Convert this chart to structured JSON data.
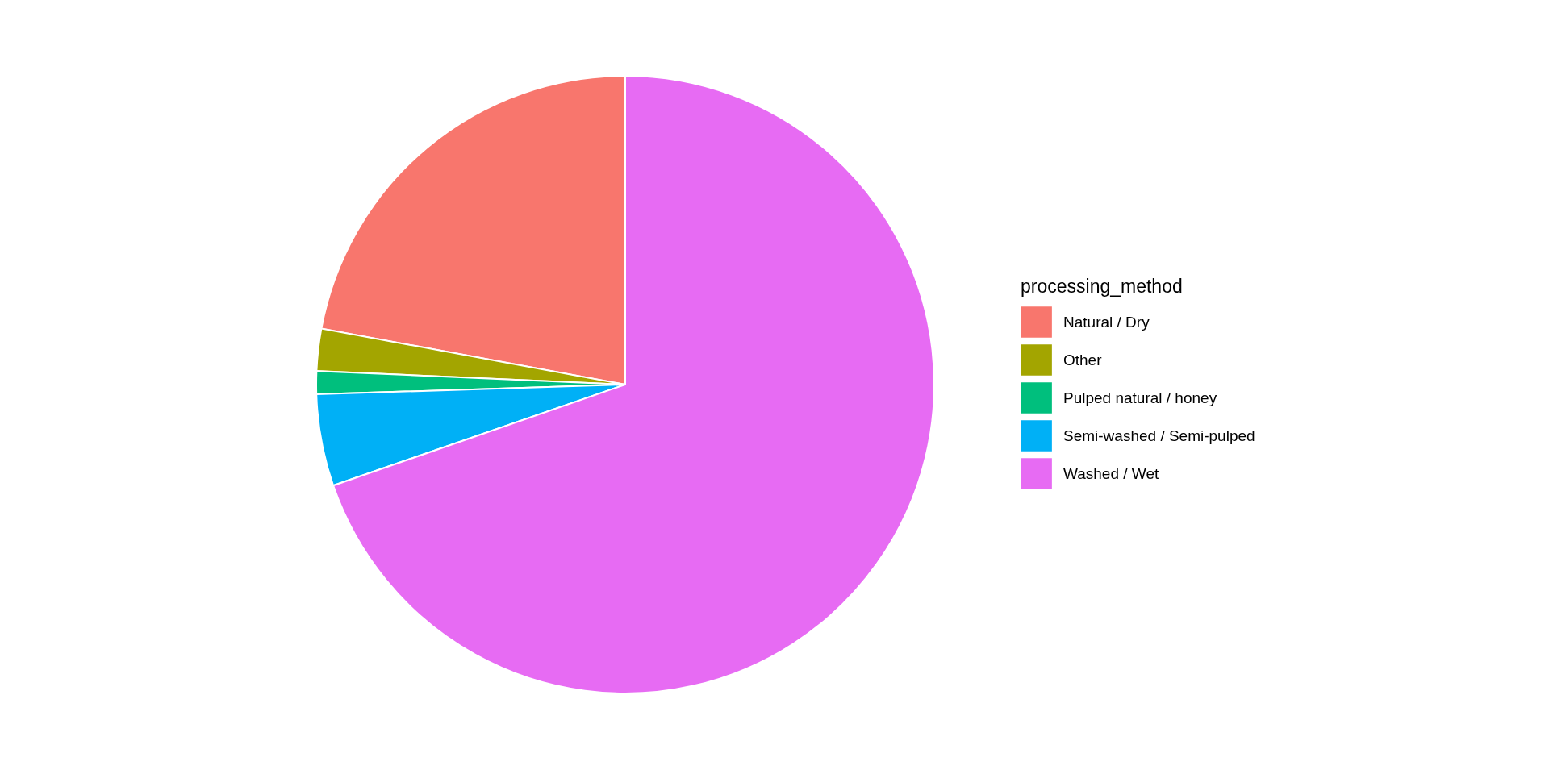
{
  "chart_data": {
    "type": "pie",
    "legend_title": "processing_method",
    "categories": [
      "Natural / Dry",
      "Other",
      "Pulped natural / honey",
      "Semi-washed / Semi-pulped",
      "Washed / Wet"
    ],
    "values": [
      22.1,
      2.2,
      1.2,
      4.8,
      69.7
    ],
    "colors": [
      "#F8766D",
      "#A3A500",
      "#00BF7D",
      "#00B0F6",
      "#E76BF3"
    ],
    "legend": "right"
  }
}
